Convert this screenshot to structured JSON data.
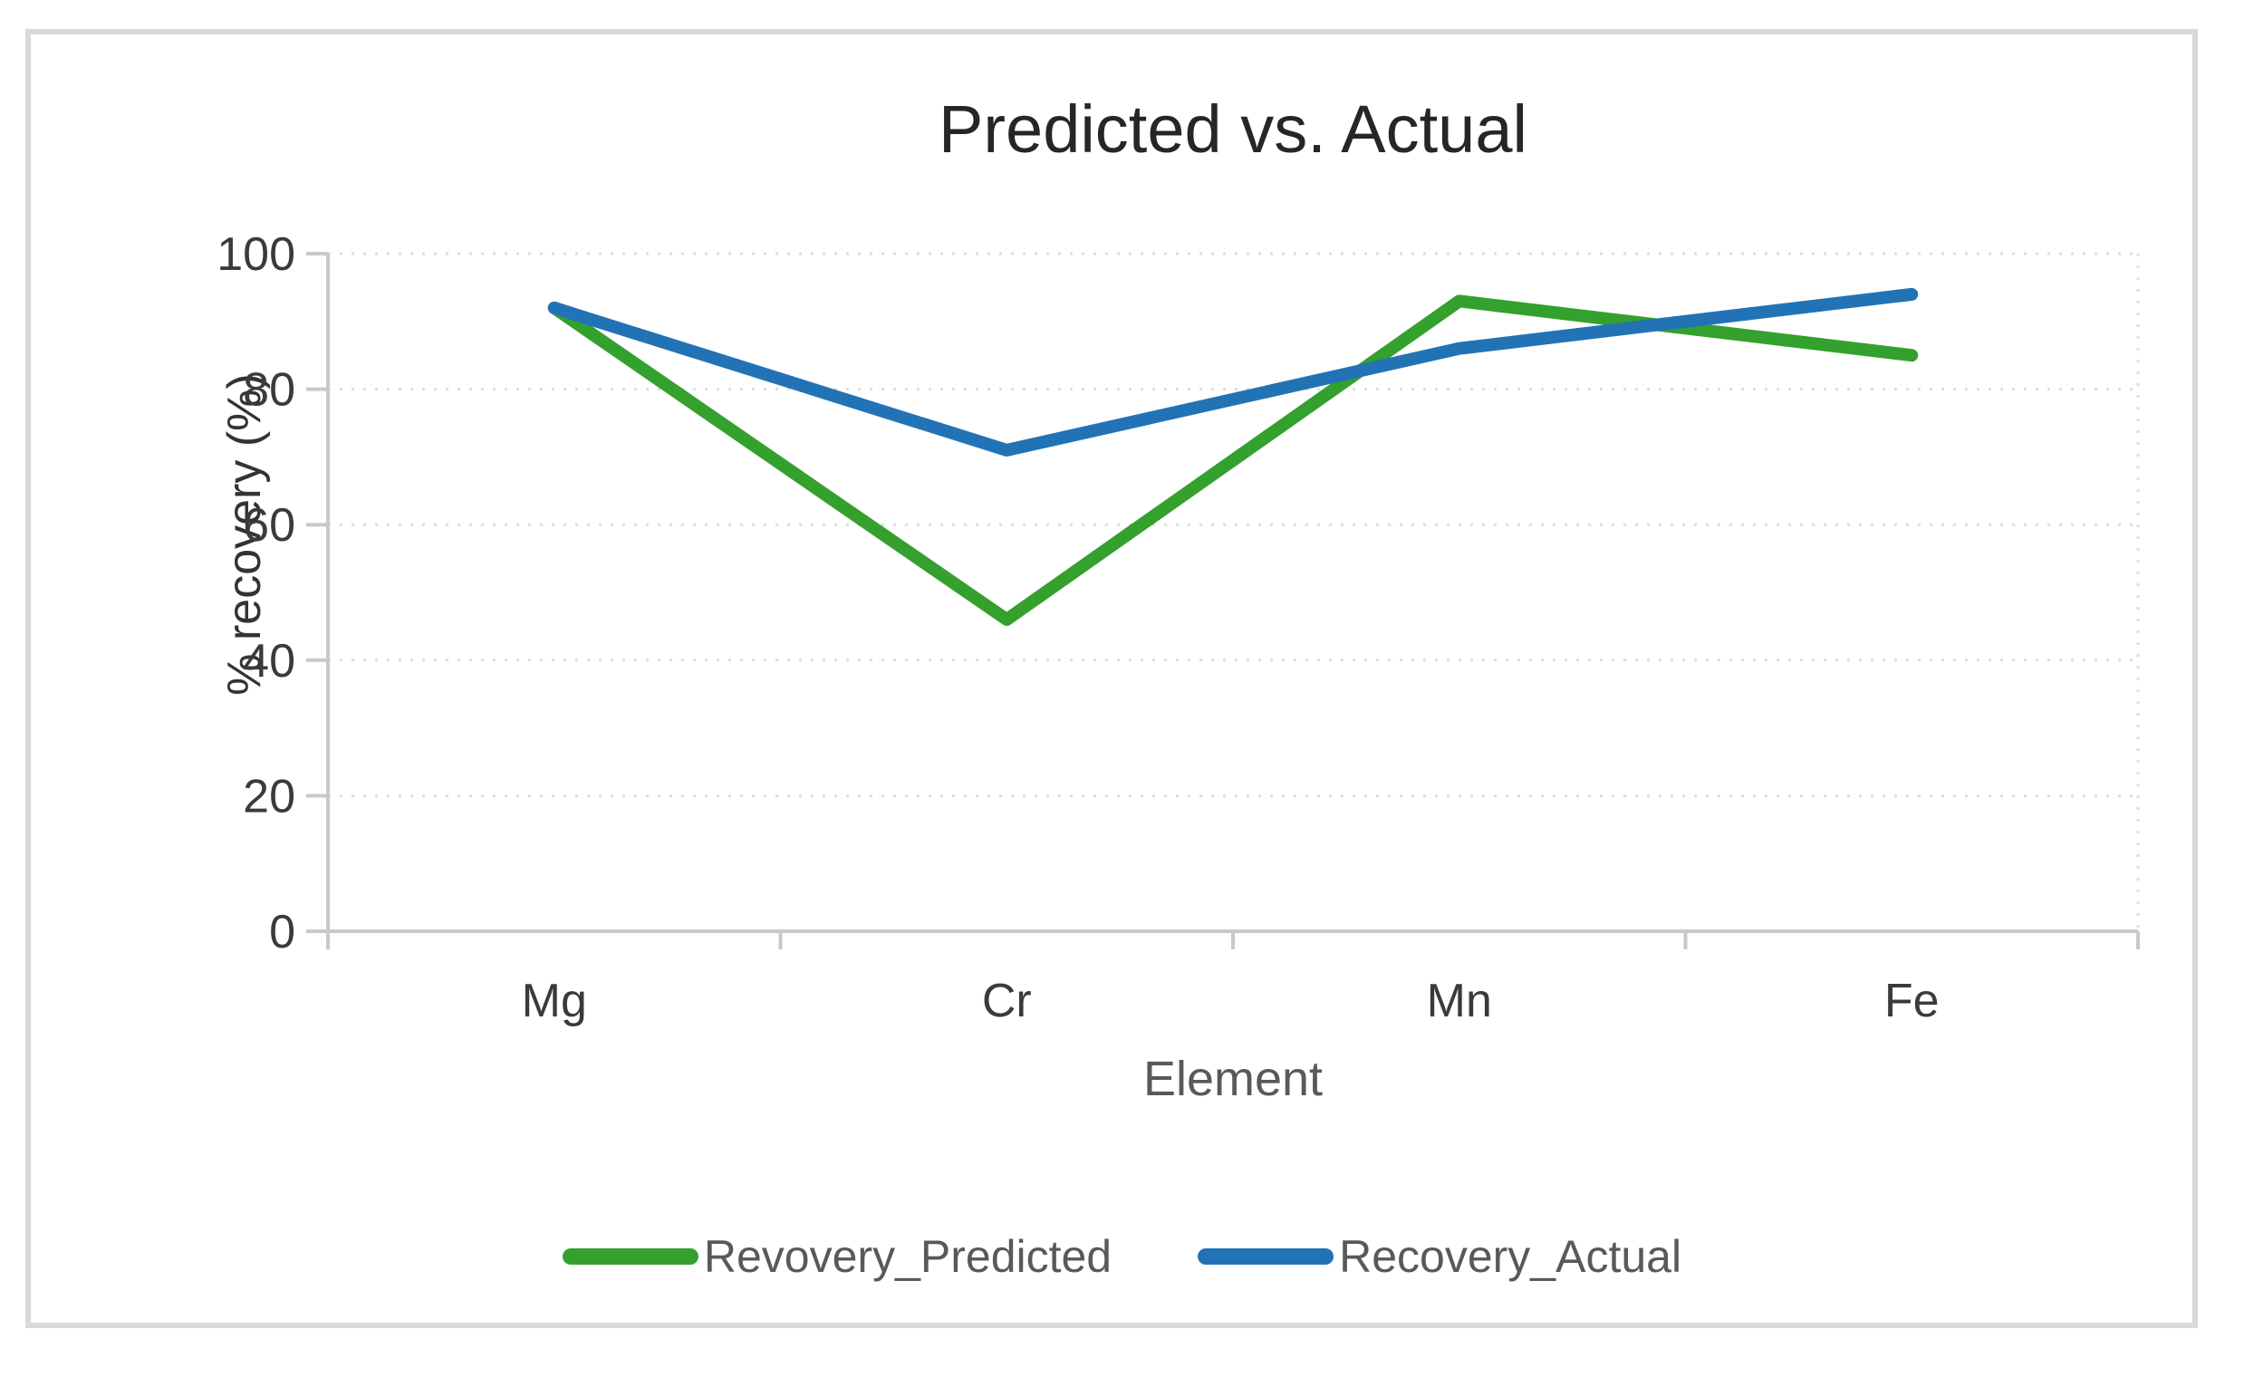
{
  "chart_data": {
    "type": "line",
    "title": "Predicted vs. Actual",
    "xlabel": "Element",
    "ylabel": "% recovery (%)",
    "categories": [
      "Mg",
      "Cr",
      "Mn",
      "Fe"
    ],
    "series": [
      {
        "name": "Revovery_Predicted",
        "color": "#34A02D",
        "values": [
          92,
          46,
          93,
          85
        ]
      },
      {
        "name": "Recovery_Actual",
        "color": "#2273B5",
        "values": [
          92,
          71,
          86,
          94
        ]
      }
    ],
    "ylim": [
      0,
      100
    ],
    "yticks": [
      0,
      20,
      40,
      60,
      80,
      100
    ],
    "grid": true,
    "legend_position": "bottom"
  },
  "colors": {
    "grid": "#dddddd",
    "axis": "#c9c9c9",
    "tick_label": "#3a3a3a",
    "frame_border": "#d9d9d9"
  }
}
